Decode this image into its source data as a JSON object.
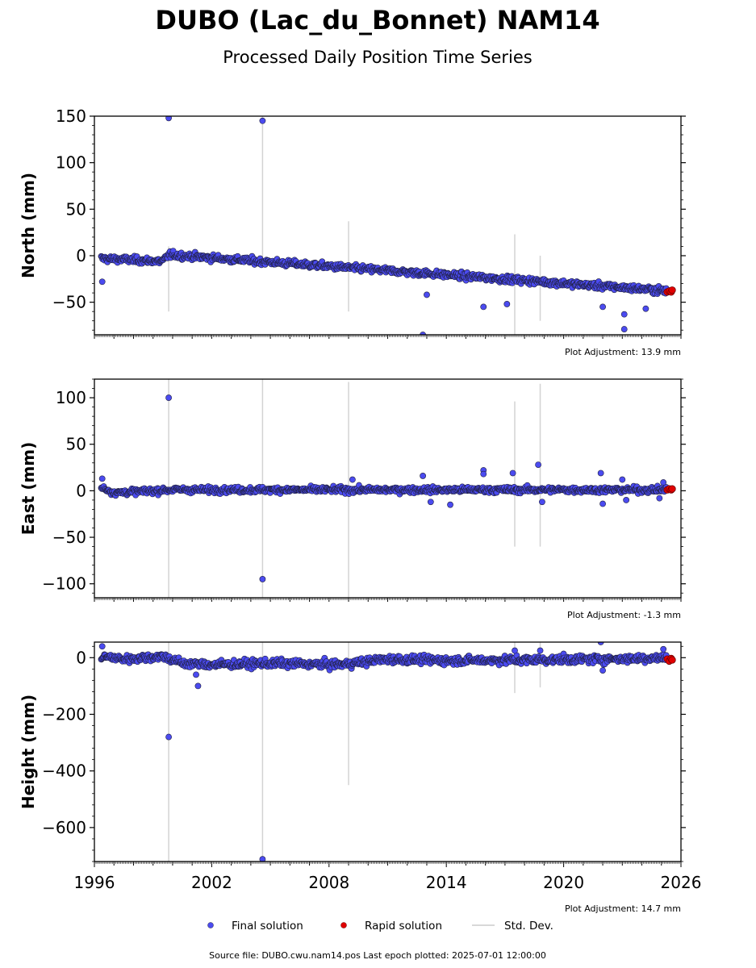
{
  "title": "DUBO (Lac_du_Bonnet) NAM14",
  "subtitle": "Processed Daily Position Time Series",
  "footer": "Source file: DUBO.cwu.nam14.pos  Last epoch plotted: 2025-07-01 12:00:00",
  "legend": [
    {
      "label": "Final solution",
      "marker": "dot",
      "color": "#4b4bf0"
    },
    {
      "label": "Rapid solution",
      "marker": "dot",
      "color": "#e00000"
    },
    {
      "label": "Std. Dev.",
      "marker": "line",
      "color": "#cccccc"
    }
  ],
  "colors": {
    "final": "#4b4bf0",
    "final_edge": "#202040",
    "rapid": "#e00000",
    "stddev": "#d3d3d3"
  },
  "chart_data": [
    {
      "type": "scatter",
      "ylabel": "North (mm)",
      "xlim": [
        1996,
        2026
      ],
      "ylim": [
        -85,
        150
      ],
      "yticks": [
        150,
        100,
        50,
        0,
        -50
      ],
      "adjustment": "Plot Adjustment: 13.9 mm",
      "trend": [
        [
          1996.3,
          -3
        ],
        [
          1999.5,
          -6
        ],
        [
          1999.8,
          1
        ],
        [
          2025.5,
          -38
        ]
      ],
      "scatter_sd": 2.5,
      "outliers": [
        [
          1996.4,
          -28
        ],
        [
          1999.8,
          148
        ],
        [
          2004.6,
          145
        ],
        [
          2012.8,
          -85
        ],
        [
          2015.9,
          -55
        ],
        [
          2017.1,
          -52
        ],
        [
          2023.1,
          -63
        ],
        [
          2023.1,
          -79
        ],
        [
          2024.2,
          -57
        ],
        [
          2022.0,
          -55
        ],
        [
          2013.0,
          -42
        ]
      ],
      "stddev_bars": [
        [
          1999.8,
          -60,
          10
        ],
        [
          2004.6,
          -10,
          150
        ],
        [
          2009.0,
          -60,
          37
        ],
        [
          2017.5,
          -85,
          23
        ],
        [
          2018.8,
          -70,
          0
        ]
      ],
      "rapid": [
        [
          2025.3,
          -39
        ],
        [
          2025.4,
          -38
        ],
        [
          2025.5,
          -39
        ],
        [
          2025.55,
          -37
        ]
      ]
    },
    {
      "type": "scatter",
      "ylabel": "East (mm)",
      "xlim": [
        1996,
        2026
      ],
      "ylim": [
        -115,
        120
      ],
      "yticks": [
        100,
        50,
        0,
        -50,
        -100
      ],
      "adjustment": "Plot Adjustment: -1.3 mm",
      "trend": [
        [
          1996.3,
          4
        ],
        [
          1997.0,
          -2
        ],
        [
          2000.0,
          1
        ],
        [
          2025.5,
          1
        ]
      ],
      "scatter_sd": 2.2,
      "outliers": [
        [
          1996.4,
          13
        ],
        [
          1999.8,
          100
        ],
        [
          2004.6,
          -95
        ],
        [
          2009.2,
          12
        ],
        [
          2012.8,
          16
        ],
        [
          2013.2,
          -12
        ],
        [
          2014.2,
          -15
        ],
        [
          2015.9,
          22
        ],
        [
          2015.9,
          18
        ],
        [
          2017.4,
          19
        ],
        [
          2018.7,
          28
        ],
        [
          2018.9,
          -12
        ],
        [
          2021.9,
          19
        ],
        [
          2022.0,
          -14
        ],
        [
          2023.0,
          12
        ],
        [
          2023.2,
          -10
        ],
        [
          2024.9,
          -8
        ],
        [
          2025.1,
          9
        ]
      ],
      "stddev_bars": [
        [
          1999.8,
          -115,
          120
        ],
        [
          2004.6,
          -115,
          120
        ],
        [
          2009.0,
          -115,
          117
        ],
        [
          2017.5,
          -60,
          96
        ],
        [
          2018.8,
          -60,
          115
        ]
      ],
      "rapid": [
        [
          2025.3,
          1
        ],
        [
          2025.4,
          2
        ],
        [
          2025.5,
          1
        ],
        [
          2025.55,
          2
        ]
      ]
    },
    {
      "type": "scatter",
      "ylabel": "Height (mm)",
      "xlim": [
        1996,
        2026
      ],
      "ylim": [
        -720,
        55
      ],
      "yticks": [
        0,
        -200,
        -400,
        -600
      ],
      "xticks": [
        1996,
        2002,
        2008,
        2014,
        2020,
        2026
      ],
      "adjustment": "Plot Adjustment: 14.7 mm",
      "trend": [
        [
          1996.3,
          5
        ],
        [
          1997.5,
          -5
        ],
        [
          1999.5,
          5
        ],
        [
          2000.5,
          -20
        ],
        [
          2002.0,
          -25
        ],
        [
          2005.0,
          -20
        ],
        [
          2008.5,
          -25
        ],
        [
          2011.0,
          -5
        ],
        [
          2014.0,
          -10
        ],
        [
          2018.0,
          -8
        ],
        [
          2022.0,
          -5
        ],
        [
          2025.5,
          0
        ]
      ],
      "scatter_sd": 10,
      "outliers": [
        [
          1996.4,
          40
        ],
        [
          1999.8,
          -280
        ],
        [
          2001.3,
          -100
        ],
        [
          2001.2,
          -60
        ],
        [
          2004.6,
          -712
        ],
        [
          2021.9,
          55
        ],
        [
          2022.0,
          -45
        ],
        [
          2017.5,
          25
        ],
        [
          2018.8,
          25
        ],
        [
          2025.1,
          30
        ]
      ],
      "stddev_bars": [
        [
          1999.8,
          -720,
          55
        ],
        [
          2004.6,
          -720,
          55
        ],
        [
          2009.0,
          -450,
          55
        ],
        [
          2017.5,
          -125,
          55
        ],
        [
          2018.8,
          -105,
          55
        ]
      ],
      "rapid": [
        [
          2025.3,
          -5
        ],
        [
          2025.4,
          -12
        ],
        [
          2025.5,
          -3
        ],
        [
          2025.55,
          -8
        ]
      ]
    }
  ]
}
